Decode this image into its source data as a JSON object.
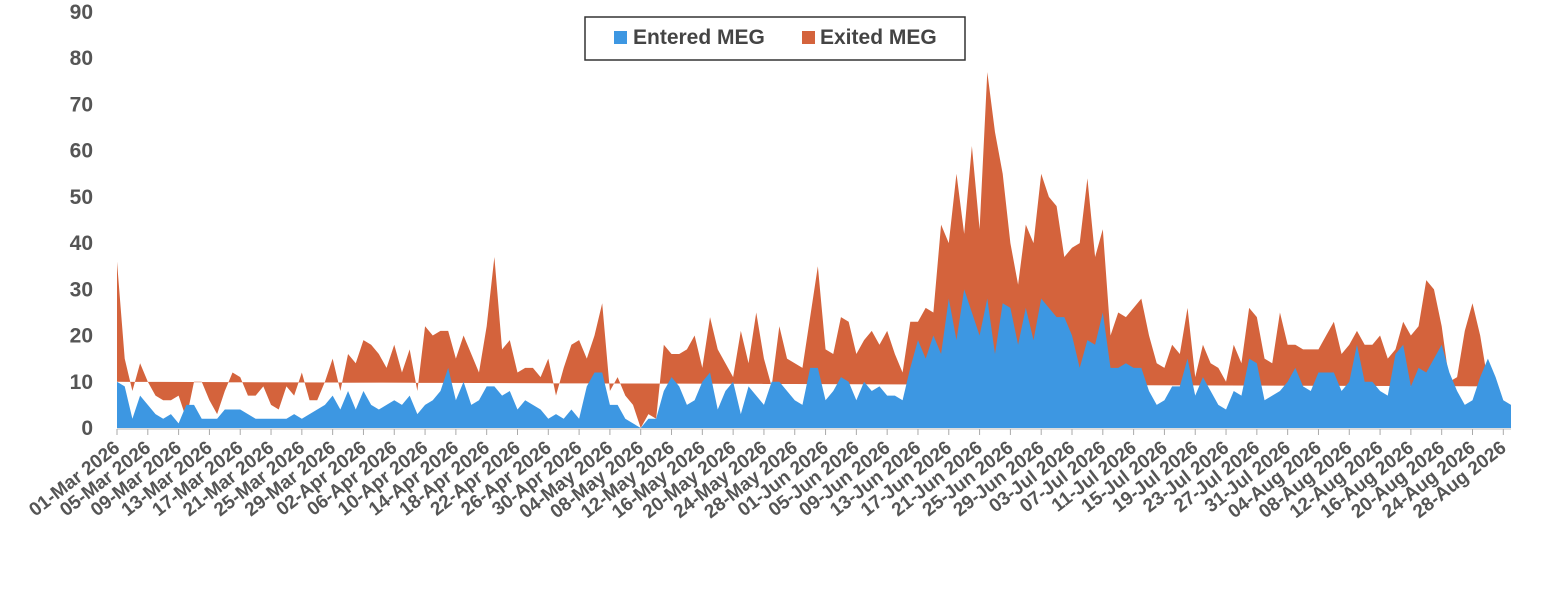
{
  "chart_data": {
    "type": "area",
    "stacked": true,
    "ylim": [
      0,
      90
    ],
    "yticks": [
      0,
      10,
      20,
      30,
      40,
      50,
      60,
      70,
      80,
      90
    ],
    "grid": false,
    "legend_position": "top-center",
    "start_date": "2026-03-01",
    "x_tick_labels": [
      "01-Mar 2026",
      "05-Mar 2026",
      "09-Mar 2026",
      "13-Mar 2026",
      "17-Mar 2026",
      "21-Mar 2026",
      "25-Mar 2026",
      "29-Mar 2026",
      "02-Apr 2026",
      "06-Apr 2026",
      "10-Apr 2026",
      "14-Apr 2026",
      "18-Apr 2026",
      "22-Apr 2026",
      "26-Apr 2026",
      "30-Apr 2026",
      "04-May 2026",
      "08-May 2026",
      "12-May 2026",
      "16-May 2026",
      "20-May 2026",
      "24-May 2026",
      "28-May 2026",
      "01-Jun 2026",
      "05-Jun 2026",
      "09-Jun 2026",
      "13-Jun 2026",
      "17-Jun 2026",
      "21-Jun 2026",
      "25-Jun 2026",
      "29-Jun 2026",
      "03-Jul 2026",
      "07-Jul 2026",
      "11-Jul 2026",
      "15-Jul 2026",
      "19-Jul 2026",
      "23-Jul 2026",
      "27-Jul 2026",
      "31-Jul 2026",
      "04-Aug 2026",
      "08-Aug 2026",
      "12-Aug 2026",
      "16-Aug 2026",
      "20-Aug 2026",
      "24-Aug 2026",
      "28-Aug 2026"
    ],
    "series": [
      {
        "name": "Entered MEG",
        "color": "#3d97e2",
        "values": [
          10,
          9,
          2,
          7,
          5,
          3,
          2,
          3,
          1,
          5,
          5,
          2,
          2,
          2,
          4,
          4,
          4,
          3,
          2,
          2,
          2,
          2,
          2,
          3,
          2,
          3,
          4,
          5,
          7,
          4,
          8,
          4,
          8,
          5,
          4,
          5,
          6,
          5,
          7,
          3,
          5,
          6,
          8,
          13,
          6,
          10,
          5,
          6,
          9,
          9,
          7,
          8,
          4,
          6,
          5,
          4,
          2,
          3,
          2,
          4,
          2,
          9,
          12,
          12,
          5,
          5,
          2,
          1,
          0,
          2,
          2,
          8,
          11,
          9,
          5,
          6,
          10,
          12,
          4,
          8,
          10,
          3,
          9,
          7,
          5,
          10,
          10,
          8,
          6,
          5,
          13,
          13,
          6,
          8,
          11,
          10,
          6,
          10,
          8,
          9,
          7,
          7,
          6,
          13,
          19,
          15,
          20,
          16,
          28,
          19,
          30,
          25,
          20,
          28,
          16,
          27,
          26,
          18,
          26,
          19,
          28,
          26,
          24,
          24,
          20,
          13,
          19,
          18,
          25,
          13,
          13,
          14,
          13,
          13,
          8,
          5,
          6,
          9,
          9,
          15,
          7,
          11,
          8,
          5,
          4,
          8,
          7,
          15,
          14,
          6,
          7,
          8,
          10,
          13,
          9,
          8,
          12,
          12,
          12,
          8,
          10,
          18,
          10,
          10,
          8,
          7,
          16,
          18,
          9,
          13,
          12,
          15,
          18,
          12,
          8,
          5,
          6,
          11,
          15,
          11,
          6,
          5
        ],
        "totals": [
          36,
          15,
          8,
          14,
          10,
          7,
          6,
          6,
          7,
          2,
          10,
          10,
          6,
          3,
          8,
          12,
          11,
          7,
          7,
          9,
          5,
          4,
          9,
          7,
          12,
          6,
          6,
          10,
          15,
          8,
          16,
          14,
          19,
          18,
          16,
          13,
          18,
          12,
          17,
          8,
          22,
          20,
          21,
          21,
          15,
          20,
          16,
          12,
          22,
          37,
          17,
          19,
          12,
          13,
          13,
          11,
          15,
          7,
          13,
          18,
          19,
          15,
          20,
          27,
          8,
          11,
          7,
          5,
          0,
          3,
          2,
          18,
          16,
          16,
          17,
          20,
          13,
          24,
          17,
          14,
          11,
          21,
          14,
          25,
          15,
          9,
          22,
          15,
          14,
          13,
          24,
          35,
          17,
          16,
          24,
          23,
          16,
          19,
          21,
          18,
          21,
          16,
          12,
          23,
          23,
          26,
          25,
          44,
          40,
          55,
          42,
          61,
          43,
          77,
          64,
          55,
          40,
          31,
          44,
          40,
          55,
          50,
          48,
          37,
          39,
          40,
          54,
          37,
          43,
          20,
          25,
          24,
          26,
          28,
          20,
          14,
          13,
          18,
          16,
          26,
          11,
          18,
          14,
          13,
          10,
          18,
          14,
          26,
          24,
          15,
          14,
          25,
          18,
          18,
          17,
          17,
          17,
          20,
          23,
          16,
          18,
          21,
          18,
          18,
          20,
          15,
          17,
          23,
          20,
          22,
          32,
          30,
          22,
          10,
          11,
          21,
          27,
          20,
          10,
          9,
          9
        ]
      },
      {
        "name": "Exited MEG",
        "color": "#d4633c"
      }
    ]
  }
}
